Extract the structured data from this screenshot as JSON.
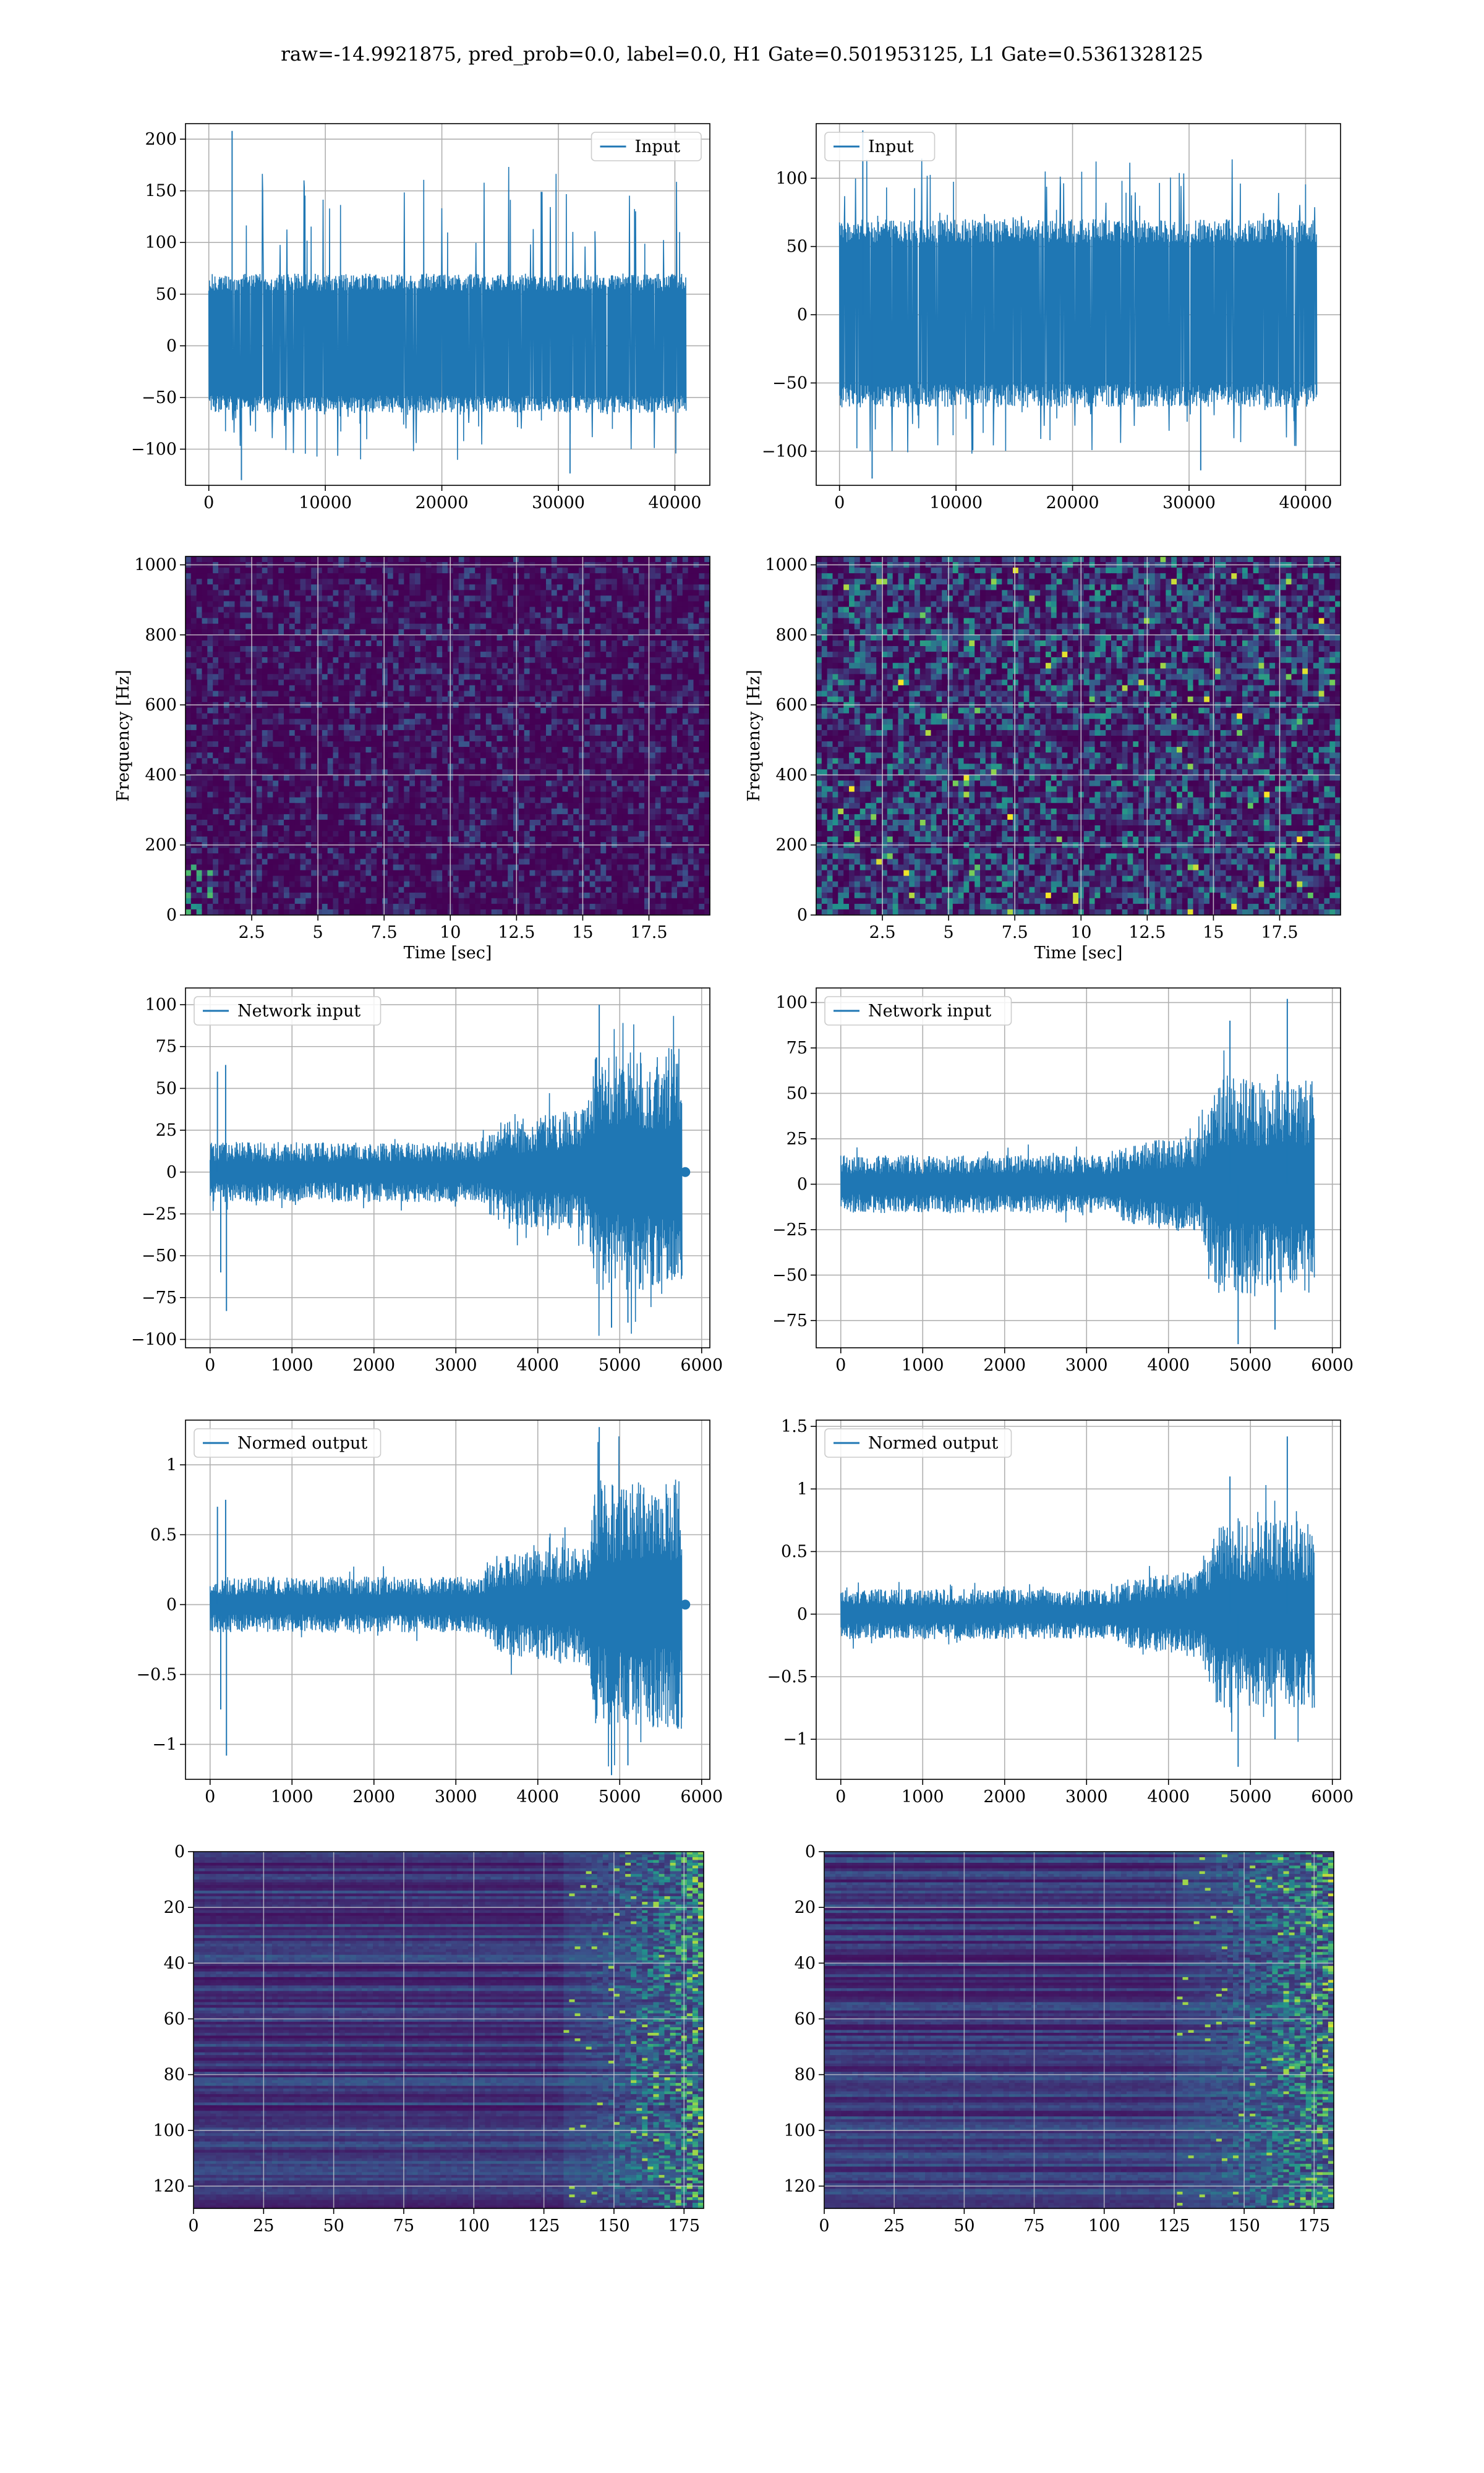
{
  "figure": {
    "suptitle": "raw=-14.9921875, pred_prob=0.0, label=0.0, H1 Gate=0.501953125, L1 Gate=0.5361328125"
  },
  "colors": {
    "series": "#1f77b4",
    "grid": "#b0b0b0",
    "viridis_low": "#440154",
    "viridis_mid": "#21918c",
    "viridis_high": "#fde725"
  },
  "chart_data": [
    {
      "id": "row1-left",
      "type": "line",
      "xlim": [
        -2000,
        43000
      ],
      "ylim": [
        -135,
        215
      ],
      "xticks": [
        0,
        10000,
        20000,
        30000,
        40000
      ],
      "yticks": [
        -100,
        -50,
        0,
        50,
        100,
        150,
        200
      ],
      "legend": "Input",
      "legend_loc": "upper right",
      "x_range": [
        0,
        40960
      ],
      "y_core": [
        -65,
        70
      ],
      "y_spikes": [
        -130,
        208
      ],
      "grid": true
    },
    {
      "id": "row1-right",
      "type": "line",
      "xlim": [
        -2000,
        43000
      ],
      "ylim": [
        -125,
        140
      ],
      "xticks": [
        0,
        10000,
        20000,
        30000,
        40000
      ],
      "yticks": [
        -100,
        -50,
        0,
        50,
        100
      ],
      "legend": "Input",
      "legend_loc": "upper left",
      "x_range": [
        0,
        40960
      ],
      "y_core": [
        -68,
        70
      ],
      "y_spikes": [
        -120,
        135
      ],
      "grid": true
    },
    {
      "id": "row2-left",
      "type": "heatmap",
      "xlabel": "Time [sec]",
      "ylabel": "Frequency [Hz]",
      "xlim": [
        0,
        19.8
      ],
      "ylim": [
        0,
        1024
      ],
      "xticks": [
        2.5,
        5.0,
        7.5,
        10.0,
        12.5,
        15.0,
        17.5
      ],
      "yticks": [
        0,
        200,
        400,
        600,
        800,
        1000
      ],
      "colormap": "viridis",
      "intensity": "low",
      "grid": true
    },
    {
      "id": "row2-right",
      "type": "heatmap",
      "xlabel": "Time [sec]",
      "ylabel": "Frequency [Hz]",
      "xlim": [
        0,
        19.8
      ],
      "ylim": [
        0,
        1024
      ],
      "xticks": [
        2.5,
        5.0,
        7.5,
        10.0,
        12.5,
        15.0,
        17.5
      ],
      "yticks": [
        0,
        200,
        400,
        600,
        800,
        1000
      ],
      "colormap": "viridis",
      "intensity": "high",
      "grid": true
    },
    {
      "id": "row3-left",
      "type": "line",
      "xlim": [
        -300,
        6100
      ],
      "ylim": [
        -105,
        110
      ],
      "xticks": [
        0,
        1000,
        2000,
        3000,
        4000,
        5000,
        6000
      ],
      "yticks": [
        -100,
        -75,
        -50,
        -25,
        0,
        25,
        50,
        75,
        100
      ],
      "legend": "Network input",
      "legend_loc": "upper left",
      "x_range": [
        0,
        5760
      ],
      "envelope": [
        [
          0,
          18
        ],
        [
          3300,
          18
        ],
        [
          3500,
          30
        ],
        [
          4600,
          38
        ],
        [
          4700,
          70
        ],
        [
          5750,
          75
        ]
      ],
      "spikes": [
        [
          90,
          60
        ],
        [
          130,
          -60
        ],
        [
          190,
          64
        ],
        [
          200,
          -83
        ],
        [
          4750,
          100
        ],
        [
          4900,
          -93
        ],
        [
          5100,
          -90
        ]
      ],
      "end_marker": [
        5800,
        0
      ],
      "grid": true
    },
    {
      "id": "row3-right",
      "type": "line",
      "xlim": [
        -300,
        6100
      ],
      "ylim": [
        -90,
        108
      ],
      "xticks": [
        0,
        1000,
        2000,
        3000,
        4000,
        5000,
        6000
      ],
      "yticks": [
        -75,
        -50,
        -25,
        0,
        25,
        50,
        75,
        100
      ],
      "legend": "Network input",
      "legend_loc": "upper left",
      "x_range": [
        0,
        5780
      ],
      "envelope": [
        [
          0,
          16
        ],
        [
          3300,
          16
        ],
        [
          3500,
          22
        ],
        [
          4400,
          28
        ],
        [
          4600,
          60
        ],
        [
          5700,
          60
        ]
      ],
      "spikes": [
        [
          4750,
          90
        ],
        [
          4850,
          -88
        ],
        [
          5450,
          102
        ],
        [
          5300,
          -80
        ]
      ],
      "end_marker": null,
      "grid": true
    },
    {
      "id": "row4-left",
      "type": "line",
      "xlim": [
        -300,
        6100
      ],
      "ylim": [
        -1.25,
        1.32
      ],
      "xticks": [
        0,
        1000,
        2000,
        3000,
        4000,
        5000,
        6000
      ],
      "yticks": [
        -1.0,
        -0.5,
        0.0,
        0.5,
        1.0
      ],
      "legend": "Normed output",
      "legend_loc": "upper left",
      "x_range": [
        0,
        5760
      ],
      "envelope": [
        [
          0,
          0.2
        ],
        [
          3300,
          0.2
        ],
        [
          3500,
          0.35
        ],
        [
          4600,
          0.45
        ],
        [
          4700,
          0.85
        ],
        [
          5750,
          0.9
        ]
      ],
      "spikes": [
        [
          90,
          0.7
        ],
        [
          130,
          -0.75
        ],
        [
          190,
          0.75
        ],
        [
          200,
          -1.08
        ],
        [
          4750,
          1.27
        ],
        [
          4900,
          -1.22
        ],
        [
          5100,
          -1.15
        ]
      ],
      "end_marker": [
        5800,
        0
      ],
      "grid": true
    },
    {
      "id": "row4-right",
      "type": "line",
      "xlim": [
        -300,
        6100
      ],
      "ylim": [
        -1.32,
        1.55
      ],
      "xticks": [
        0,
        1000,
        2000,
        3000,
        4000,
        5000,
        6000
      ],
      "yticks": [
        -1.0,
        -0.5,
        0.0,
        0.5,
        1.0,
        1.5
      ],
      "legend": "Normed output",
      "legend_loc": "upper left",
      "x_range": [
        0,
        5780
      ],
      "envelope": [
        [
          0,
          0.2
        ],
        [
          3300,
          0.2
        ],
        [
          3500,
          0.28
        ],
        [
          4400,
          0.35
        ],
        [
          4600,
          0.75
        ],
        [
          5700,
          0.75
        ]
      ],
      "spikes": [
        [
          4750,
          1.1
        ],
        [
          4850,
          -1.22
        ],
        [
          5450,
          1.42
        ],
        [
          5300,
          -1.0
        ]
      ],
      "end_marker": null,
      "grid": true
    },
    {
      "id": "row5-left",
      "type": "heatmap",
      "xlim": [
        0,
        182
      ],
      "ylim": [
        128,
        0
      ],
      "xticks": [
        0,
        25,
        50,
        75,
        100,
        125,
        150,
        175
      ],
      "yticks": [
        0,
        20,
        40,
        60,
        80,
        100,
        120
      ],
      "colormap": "viridis",
      "bright_from_col": 130,
      "grid": true
    },
    {
      "id": "row5-right",
      "type": "heatmap",
      "xlim": [
        0,
        182
      ],
      "ylim": [
        128,
        0
      ],
      "xticks": [
        0,
        25,
        50,
        75,
        100,
        125,
        150,
        175
      ],
      "yticks": [
        0,
        20,
        40,
        60,
        80,
        100,
        120
      ],
      "colormap": "viridis",
      "bright_from_col": 125,
      "grid": true
    }
  ]
}
